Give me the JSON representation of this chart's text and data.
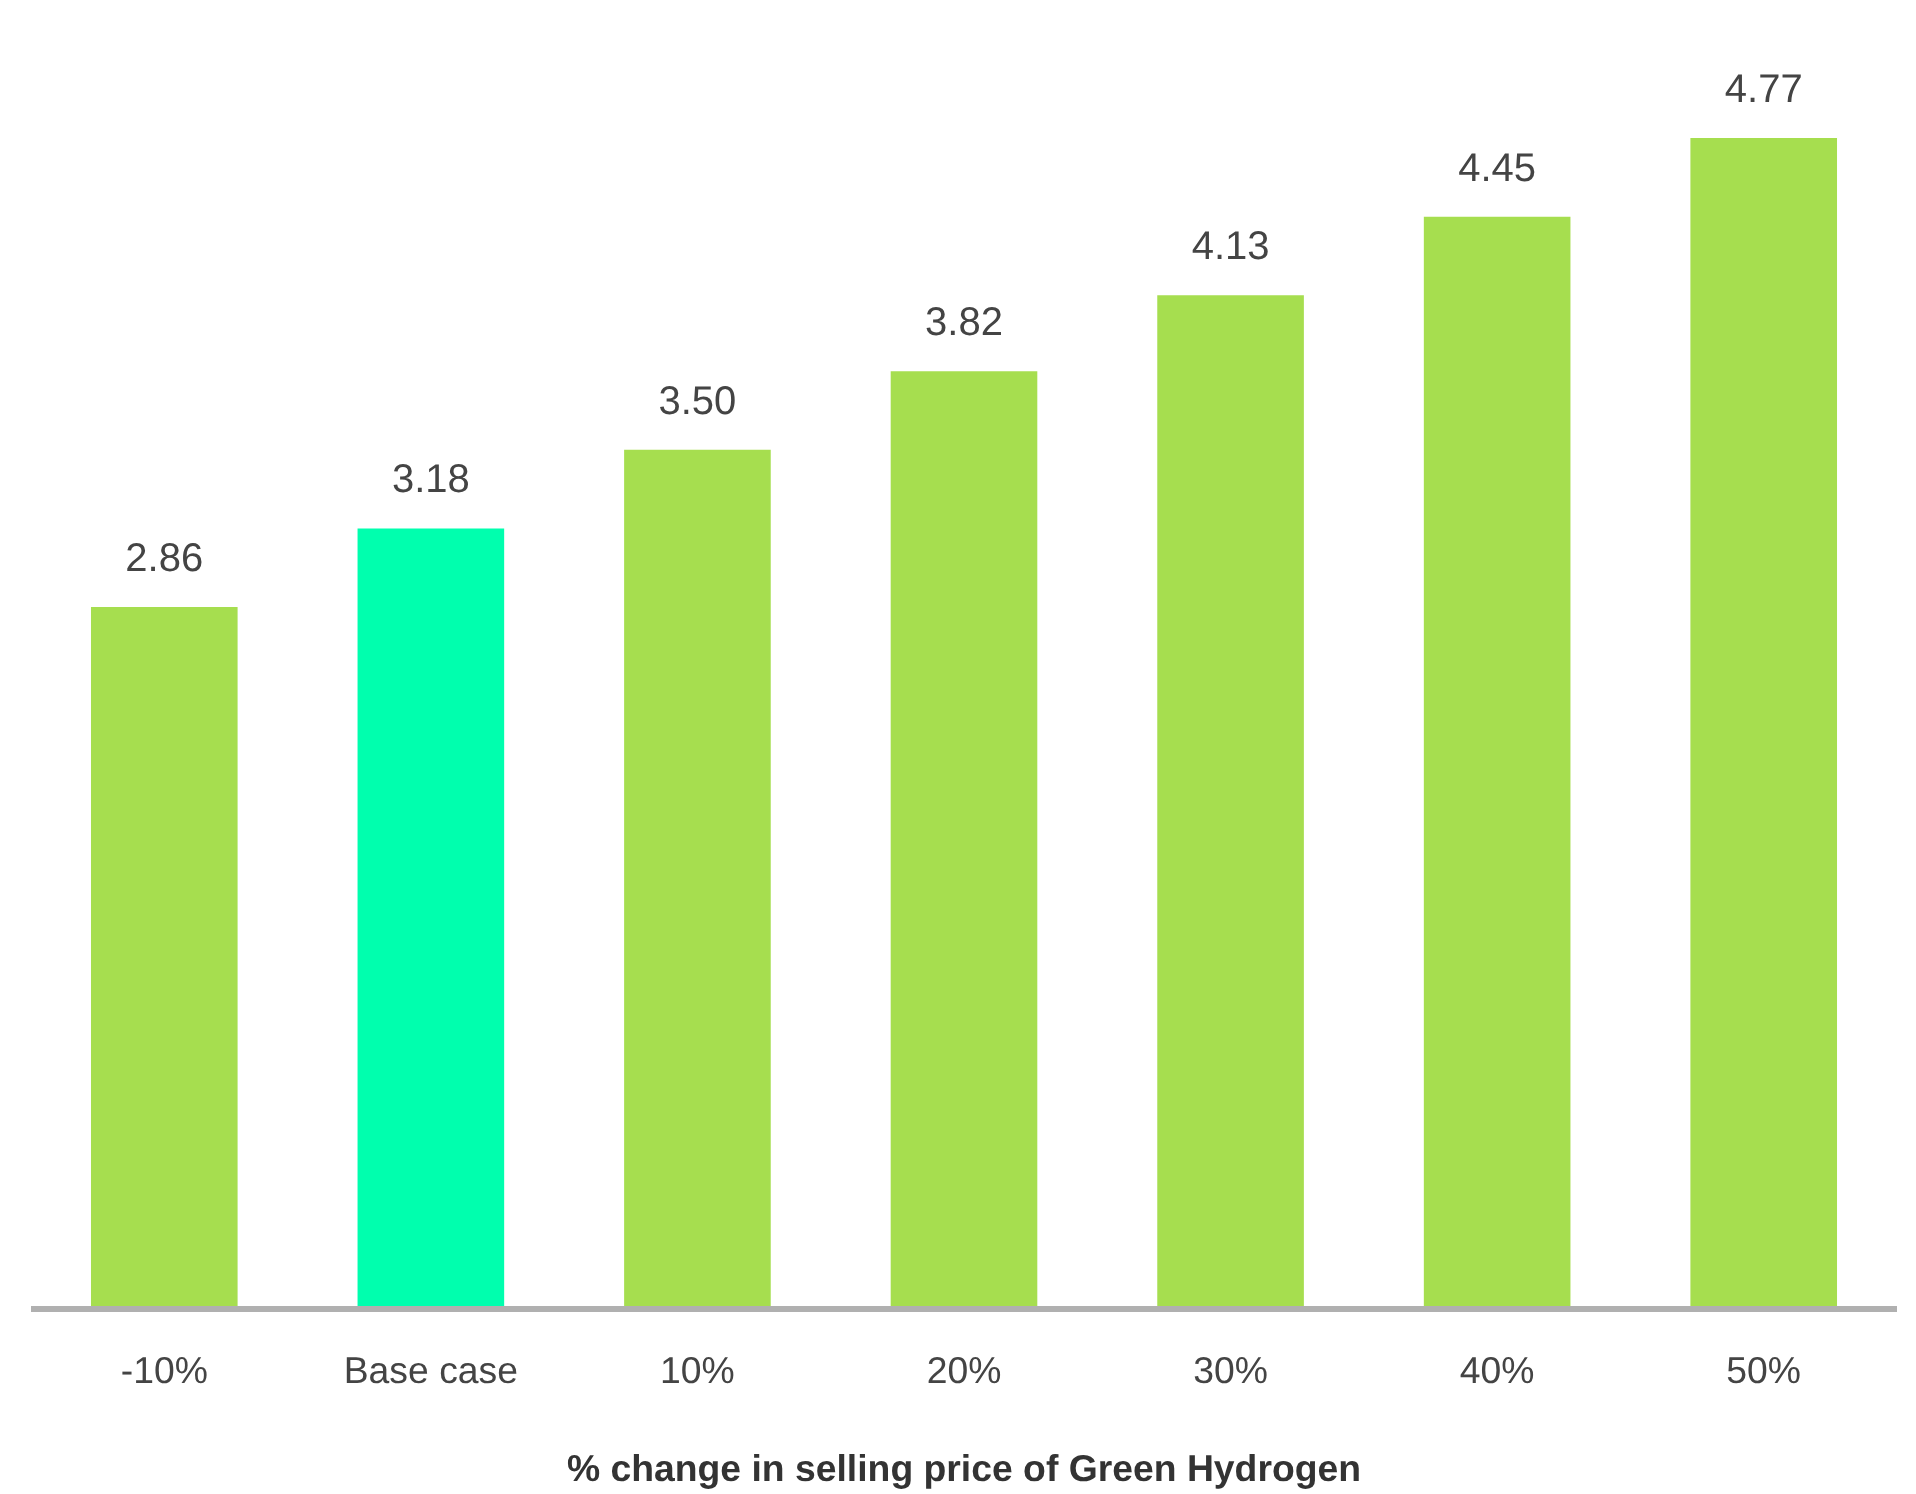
{
  "chart_data": {
    "type": "bar",
    "xlabel": "% change in selling price of Green Hydrogen",
    "categories": [
      "-10%",
      "Base case",
      "10%",
      "20%",
      "30%",
      "40%",
      "50%"
    ],
    "values": [
      2.86,
      3.18,
      3.5,
      3.82,
      4.13,
      4.45,
      4.77
    ],
    "value_labels": [
      "2.86",
      "3.18",
      "3.50",
      "3.82",
      "4.13",
      "4.45",
      "4.77"
    ],
    "colors": [
      "#a6de4f",
      "#00ffae",
      "#a6de4f",
      "#a6de4f",
      "#a6de4f",
      "#a6de4f",
      "#a6de4f"
    ],
    "grid": false
  }
}
